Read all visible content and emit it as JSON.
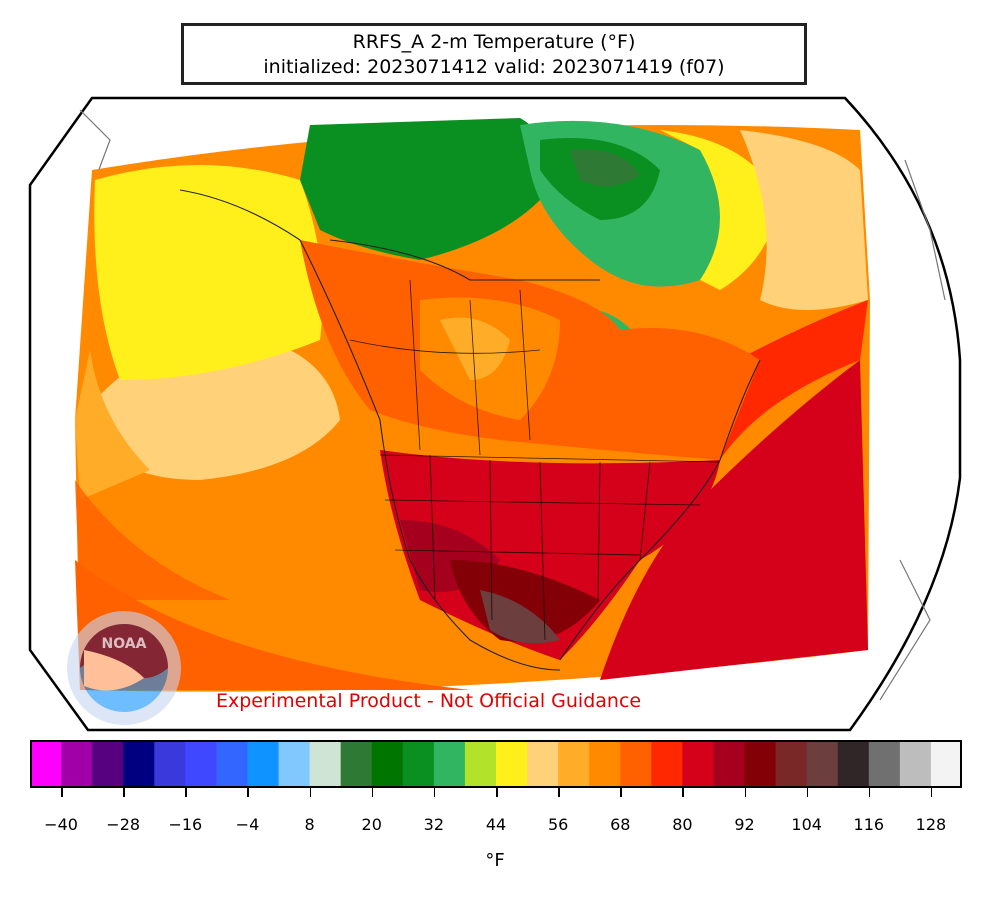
{
  "title": {
    "line1": "RRFS_A 2-m Temperature (°F)",
    "line2": "initialized: 2023071412 valid: 2023071419 (f07)"
  },
  "watermark": "Experimental Product - Not Official Guidance",
  "logo_text": "NOAA",
  "colorbar": {
    "unit": "°F",
    "ticks": [
      "−40",
      "−28",
      "−16",
      "−4",
      "8",
      "20",
      "32",
      "44",
      "56",
      "68",
      "80",
      "92",
      "104",
      "116",
      "128"
    ],
    "colors": [
      "#ff00ff",
      "#a100a9",
      "#570080",
      "#000080",
      "#3a3adc",
      "#4048ff",
      "#3366ff",
      "#0f93ff",
      "#80c8ff",
      "#cfe4d5",
      "#2e7a35",
      "#007600",
      "#0a9020",
      "#31b560",
      "#b3e22a",
      "#fff01c",
      "#ffd27a",
      "#ffad28",
      "#ff8a00",
      "#ff6000",
      "#ff2800",
      "#d5001a",
      "#a5001e",
      "#830006",
      "#7a2727",
      "#6d3e3e",
      "#302628",
      "#707070",
      "#bdbdbd",
      "#f3f3f3"
    ]
  }
}
